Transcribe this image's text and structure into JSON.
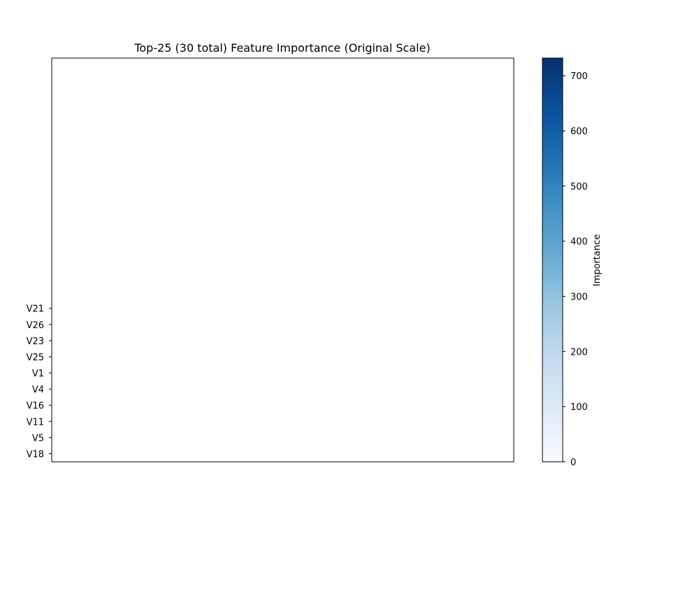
{
  "chart_data": {
    "type": "heatmap",
    "title": "Top-25 (30 total) Feature Importance (Original Scale)",
    "xlabel": "",
    "ylabel": "",
    "y_tick_labels": [
      "V21",
      "V26",
      "V23",
      "V25",
      "V1",
      "V4",
      "V16",
      "V11",
      "V5",
      "V18"
    ],
    "values": [],
    "colormap": "Blues",
    "colorbar": {
      "label": "Importance",
      "range": [
        0,
        732
      ],
      "ticks": [
        0,
        100,
        200,
        300,
        400,
        500,
        600,
        700
      ],
      "colors": [
        "#f7fbff",
        "#deebf7",
        "#c6dbef",
        "#9ecae1",
        "#6baed6",
        "#4292c6",
        "#2171b5",
        "#08519c",
        "#08306b"
      ]
    },
    "grid": false
  }
}
